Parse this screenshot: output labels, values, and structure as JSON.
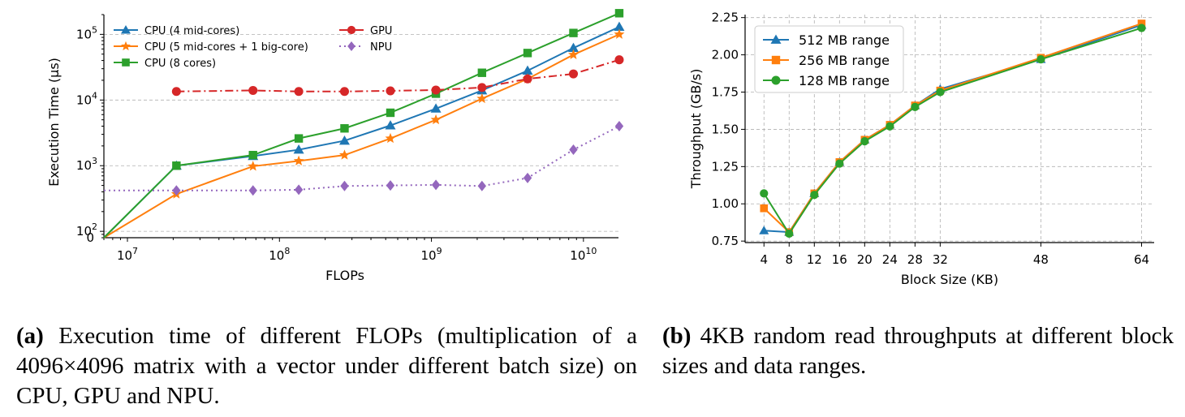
{
  "chart_data": [
    {
      "type": "line",
      "xscale": "log",
      "yscale": "log",
      "xlabel": "FLOPs",
      "ylabel": "Execution Time (μs)",
      "xlim": [
        7000000,
        17000000000
      ],
      "ylim": [
        80,
        200000
      ],
      "x_ticks": [
        {
          "value": 10000000,
          "base": "10",
          "exp": "7"
        },
        {
          "value": 100000000,
          "base": "10",
          "exp": "8"
        },
        {
          "value": 1000000000,
          "base": "10",
          "exp": "9"
        },
        {
          "value": 10000000000,
          "base": "10",
          "exp": "10"
        }
      ],
      "y_ticks": [
        {
          "value": 100,
          "base": "10",
          "exp": "2"
        },
        {
          "value": 1000,
          "base": "10",
          "exp": "3"
        },
        {
          "value": 10000,
          "base": "10",
          "exp": "4"
        },
        {
          "value": 100000,
          "base": "10",
          "exp": "5"
        }
      ],
      "y_zero_label": "0",
      "x": [
        7000000,
        21000000,
        67000000,
        134000000,
        268000000,
        537000000,
        1070000000,
        2150000000,
        4290000000,
        8590000000,
        17200000000
      ],
      "series": [
        {
          "name": "CPU (4 mid-cores)",
          "color": "#1f77b4",
          "marker": "triangle",
          "dash": "solid",
          "values": [
            80,
            1000,
            1400,
            1750,
            2400,
            4100,
            7400,
            14000,
            28000,
            62000,
            130000
          ]
        },
        {
          "name": "CPU (5 mid-cores + 1 big-core)",
          "color": "#ff7f0e",
          "marker": "star",
          "dash": "solid",
          "values": [
            80,
            370,
            980,
            1180,
            1450,
            2600,
            5000,
            10500,
            21000,
            49000,
            100000
          ]
        },
        {
          "name": "CPU (8 cores)",
          "color": "#2ca02c",
          "marker": "square",
          "dash": "solid",
          "values": [
            80,
            1000,
            1450,
            2600,
            3700,
            6400,
            12500,
            26000,
            52000,
            105000,
            210000
          ]
        },
        {
          "name": "GPU",
          "color": "#d62728",
          "marker": "circle",
          "dash": "dashdot",
          "values": [
            null,
            13500,
            14000,
            13500,
            13500,
            13800,
            14200,
            15500,
            21000,
            25000,
            41000
          ]
        },
        {
          "name": "NPU",
          "color": "#9467bd",
          "marker": "diamond",
          "dash": "dotted",
          "values": [
            420,
            420,
            420,
            430,
            490,
            500,
            510,
            490,
            650,
            1750,
            4000
          ]
        }
      ]
    },
    {
      "type": "line",
      "xlabel": "Block Size (KB)",
      "ylabel": "Throughput (GB/s)",
      "xlim": [
        1,
        66
      ],
      "ylim": [
        0.74,
        2.27
      ],
      "x_ticks": [
        4,
        8,
        12,
        16,
        20,
        24,
        28,
        32,
        48,
        64
      ],
      "y_ticks": [
        "0.75",
        "1.00",
        "1.25",
        "1.50",
        "1.75",
        "2.00",
        "2.25"
      ],
      "x": [
        4,
        8,
        12,
        16,
        20,
        24,
        28,
        32,
        48,
        64
      ],
      "series": [
        {
          "name": "512 MB range",
          "color": "#1f77b4",
          "marker": "triangle",
          "values": [
            0.82,
            0.81,
            1.07,
            1.28,
            1.43,
            1.53,
            1.66,
            1.77,
            1.97,
            2.2
          ]
        },
        {
          "name": "256 MB range",
          "color": "#ff7f0e",
          "marker": "square",
          "values": [
            0.97,
            0.81,
            1.07,
            1.28,
            1.43,
            1.53,
            1.66,
            1.76,
            1.98,
            2.21
          ]
        },
        {
          "name": "128 MB range",
          "color": "#2ca02c",
          "marker": "circle",
          "values": [
            1.07,
            0.8,
            1.06,
            1.27,
            1.42,
            1.52,
            1.65,
            1.75,
            1.97,
            2.18
          ]
        }
      ]
    }
  ],
  "captions": {
    "a_label": "(a)",
    "a_text": " Execution time of different FLOPs (multiplication of a 4096×4096 matrix with a vector under different batch size) on CPU, GPU and NPU.",
    "b_label": "(b)",
    "b_text": " 4KB random read throughputs at different block sizes and data ranges."
  }
}
